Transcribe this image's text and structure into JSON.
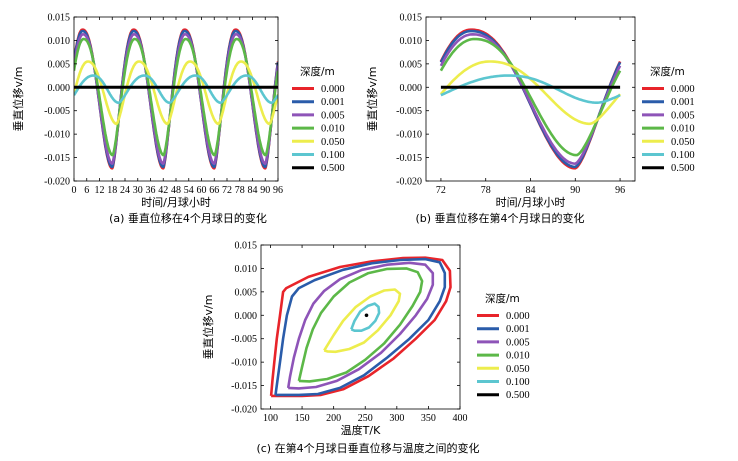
{
  "series_names": [
    "0.000",
    "0.001",
    "0.005",
    "0.010",
    "0.050",
    "0.100",
    "0.500"
  ],
  "series_colors": [
    "#e8242a",
    "#2a5caa",
    "#8e54b8",
    "#5cb848",
    "#eded4d",
    "#5cc6d0",
    "#000000"
  ],
  "legend_title": "深度/m",
  "chart_data": [
    {
      "type": "line",
      "caption": "(a) 垂直位移在4个月球日的变化",
      "xlabel": "时间/月球小时",
      "ylabel": "垂直位移v/m",
      "xlim": [
        0,
        96
      ],
      "ylim": [
        -0.02,
        0.015
      ],
      "xticks": [
        0,
        6,
        12,
        18,
        24,
        30,
        36,
        42,
        48,
        54,
        60,
        66,
        72,
        78,
        84,
        90,
        96
      ],
      "yticks": [
        -0.02,
        -0.015,
        -0.01,
        -0.005,
        0.0,
        0.005,
        0.01,
        0.015
      ],
      "ytick_labels": [
        "-0.020",
        "-0.015",
        "-0.010",
        "-0.005",
        "0.000",
        "0.005",
        "0.010",
        "0.015"
      ],
      "period_hours": 24,
      "series": [
        {
          "name": "0.000",
          "peak": [
            4,
            0.0123
          ],
          "trough": [
            18,
            -0.0173
          ]
        },
        {
          "name": "0.001",
          "peak": [
            4,
            0.012
          ],
          "trough": [
            18,
            -0.017
          ]
        },
        {
          "name": "0.005",
          "peak": [
            4.2,
            0.0113
          ],
          "trough": [
            18,
            -0.0163
          ]
        },
        {
          "name": "0.010",
          "peak": [
            4.5,
            0.0103
          ],
          "trough": [
            18.2,
            -0.0145
          ]
        },
        {
          "name": "0.050",
          "peak": [
            6.5,
            0.0055
          ],
          "trough": [
            20,
            -0.0078
          ]
        },
        {
          "name": "0.100",
          "peak": [
            9,
            0.0025
          ],
          "trough": [
            21,
            -0.0033
          ]
        },
        {
          "name": "0.500",
          "peak": [
            6,
            0.0
          ],
          "trough": [
            18,
            0.0
          ]
        }
      ]
    },
    {
      "type": "line",
      "caption": "(b) 垂直位移在第4个月球日的变化",
      "xlabel": "时间/月球小时",
      "ylabel": "垂直位移v/m",
      "xlim": [
        70,
        98
      ],
      "ylim": [
        -0.02,
        0.015
      ],
      "xticks": [
        72,
        78,
        84,
        90,
        96
      ],
      "yticks": [
        -0.02,
        -0.015,
        -0.01,
        -0.005,
        0.0,
        0.005,
        0.01,
        0.015
      ],
      "ytick_labels": [
        "-0.020",
        "-0.015",
        "-0.010",
        "-0.005",
        "0.000",
        "0.005",
        "0.010",
        "0.015"
      ],
      "period_hours": 24,
      "series": [
        {
          "name": "0.000",
          "peak": [
            76,
            0.0123
          ],
          "trough": [
            90,
            -0.0173
          ]
        },
        {
          "name": "0.001",
          "peak": [
            76,
            0.012
          ],
          "trough": [
            90,
            -0.017
          ]
        },
        {
          "name": "0.005",
          "peak": [
            76.2,
            0.0113
          ],
          "trough": [
            90,
            -0.0163
          ]
        },
        {
          "name": "0.010",
          "peak": [
            76.5,
            0.0103
          ],
          "trough": [
            90.2,
            -0.0145
          ]
        },
        {
          "name": "0.050",
          "peak": [
            78.5,
            0.0055
          ],
          "trough": [
            92,
            -0.0078
          ]
        },
        {
          "name": "0.100",
          "peak": [
            81,
            0.0025
          ],
          "trough": [
            93,
            -0.0033
          ]
        },
        {
          "name": "0.500",
          "peak": [
            78,
            0.0
          ],
          "trough": [
            90,
            0.0
          ]
        }
      ]
    },
    {
      "type": "line",
      "caption": "(c) 在第4个月球日垂直位移与温度之间的变化",
      "xlabel": "温度T/K",
      "ylabel": "垂直位移v/m",
      "xlim": [
        85,
        400
      ],
      "ylim": [
        -0.02,
        0.015
      ],
      "xticks": [
        100,
        150,
        200,
        250,
        300,
        350,
        400
      ],
      "yticks": [
        -0.02,
        -0.015,
        -0.01,
        -0.005,
        0.0,
        0.005,
        0.01,
        0.015
      ],
      "ytick_labels": [
        "-0.020",
        "-0.015",
        "-0.010",
        "-0.005",
        "0.000",
        "0.005",
        "0.010",
        "0.015"
      ],
      "series": [
        {
          "name": "0.000",
          "points": [
            [
              101,
              -0.0172
            ],
            [
              103,
              -0.014
            ],
            [
              106,
              -0.01
            ],
            [
              110,
              -0.005
            ],
            [
              115,
              0.0
            ],
            [
              120,
              0.005
            ],
            [
              125,
              0.0058
            ],
            [
              160,
              0.0082
            ],
            [
              210,
              0.0103
            ],
            [
              260,
              0.0115
            ],
            [
              310,
              0.0122
            ],
            [
              345,
              0.0123
            ],
            [
              372,
              0.0118
            ],
            [
              384,
              0.0095
            ],
            [
              385,
              0.006
            ],
            [
              378,
              0.003
            ],
            [
              360,
              -0.001
            ],
            [
              330,
              -0.005
            ],
            [
              295,
              -0.0092
            ],
            [
              255,
              -0.013
            ],
            [
              215,
              -0.0158
            ],
            [
              180,
              -0.017
            ],
            [
              150,
              -0.0172
            ],
            [
              120,
              -0.0172
            ],
            [
              101,
              -0.0172
            ]
          ]
        },
        {
          "name": "0.001",
          "points": [
            [
              108,
              -0.017
            ],
            [
              111,
              -0.014
            ],
            [
              115,
              -0.01
            ],
            [
              120,
              -0.005
            ],
            [
              126,
              0.0
            ],
            [
              134,
              0.004
            ],
            [
              145,
              0.0058
            ],
            [
              170,
              0.0075
            ],
            [
              215,
              0.0097
            ],
            [
              260,
              0.0111
            ],
            [
              305,
              0.0118
            ],
            [
              345,
              0.012
            ],
            [
              368,
              0.0113
            ],
            [
              376,
              0.009
            ],
            [
              376,
              0.006
            ],
            [
              368,
              0.003
            ],
            [
              350,
              -0.001
            ],
            [
              320,
              -0.005
            ],
            [
              285,
              -0.009
            ],
            [
              248,
              -0.0128
            ],
            [
              210,
              -0.0155
            ],
            [
              175,
              -0.0168
            ],
            [
              145,
              -0.017
            ],
            [
              120,
              -0.017
            ],
            [
              108,
              -0.017
            ]
          ]
        },
        {
          "name": "0.005",
          "points": [
            [
              128,
              -0.0155
            ],
            [
              131,
              -0.013
            ],
            [
              137,
              -0.009
            ],
            [
              145,
              -0.005
            ],
            [
              155,
              -0.001
            ],
            [
              168,
              0.0025
            ],
            [
              185,
              0.0052
            ],
            [
              210,
              0.0077
            ],
            [
              245,
              0.0097
            ],
            [
              285,
              0.0108
            ],
            [
              320,
              0.0112
            ],
            [
              345,
              0.0108
            ],
            [
              357,
              0.009
            ],
            [
              357,
              0.0065
            ],
            [
              348,
              0.0035
            ],
            [
              330,
              0.0
            ],
            [
              305,
              -0.004
            ],
            [
              275,
              -0.008
            ],
            [
              240,
              -0.0115
            ],
            [
              205,
              -0.014
            ],
            [
              172,
              -0.0153
            ],
            [
              145,
              -0.0156
            ],
            [
              128,
              -0.0155
            ]
          ]
        },
        {
          "name": "0.010",
          "points": [
            [
              145,
              -0.014
            ],
            [
              150,
              -0.011
            ],
            [
              157,
              -0.007
            ],
            [
              167,
              -0.003
            ],
            [
              180,
              0.0005
            ],
            [
              200,
              0.004
            ],
            [
              225,
              0.007
            ],
            [
              255,
              0.009
            ],
            [
              285,
              0.0099
            ],
            [
              315,
              0.01
            ],
            [
              333,
              0.0092
            ],
            [
              340,
              0.0073
            ],
            [
              337,
              0.005
            ],
            [
              325,
              0.002
            ],
            [
              305,
              -0.002
            ],
            [
              280,
              -0.006
            ],
            [
              250,
              -0.0095
            ],
            [
              220,
              -0.0122
            ],
            [
              190,
              -0.0136
            ],
            [
              162,
              -0.0141
            ],
            [
              145,
              -0.014
            ]
          ]
        },
        {
          "name": "0.050",
          "points": [
            [
              185,
              -0.0075
            ],
            [
              200,
              -0.0042
            ],
            [
              215,
              -0.0012
            ],
            [
              235,
              0.0018
            ],
            [
              258,
              0.004
            ],
            [
              280,
              0.0053
            ],
            [
              297,
              0.0055
            ],
            [
              305,
              0.0046
            ],
            [
              303,
              0.003
            ],
            [
              290,
              0.0
            ],
            [
              270,
              -0.0032
            ],
            [
              248,
              -0.0058
            ],
            [
              225,
              -0.0072
            ],
            [
              203,
              -0.0078
            ],
            [
              190,
              -0.0077
            ],
            [
              185,
              -0.0075
            ]
          ]
        },
        {
          "name": "0.100",
          "points": [
            [
              228,
              -0.003
            ],
            [
              233,
              -0.0012
            ],
            [
              242,
              0.0008
            ],
            [
              254,
              0.002
            ],
            [
              265,
              0.0025
            ],
            [
              271,
              0.0018
            ],
            [
              272,
              0.0005
            ],
            [
              266,
              -0.0012
            ],
            [
              256,
              -0.0026
            ],
            [
              244,
              -0.0033
            ],
            [
              233,
              -0.0033
            ],
            [
              228,
              -0.003
            ]
          ]
        },
        {
          "name": "0.500",
          "points": [
            [
              252,
              0.0
            ]
          ]
        }
      ]
    }
  ]
}
